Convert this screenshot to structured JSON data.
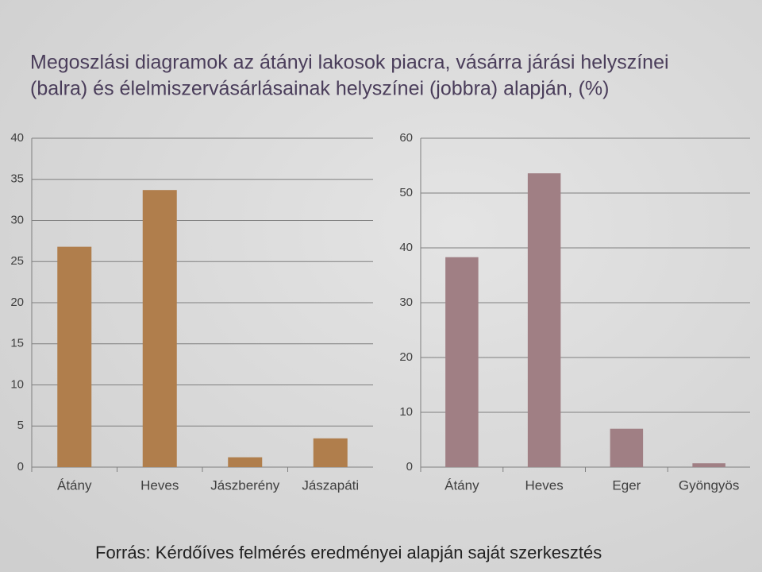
{
  "title": [
    "Megoszlási diagramok az átányi lakosok piacra, vásárra járási helyszínei",
    "(balra) és élelmiszervásárlásainak helyszínei (jobbra) alapján, (%)"
  ],
  "chart_data": [
    {
      "type": "bar",
      "categories": [
        "Átány",
        "Heves",
        "Jászberény",
        "Jászapáti"
      ],
      "values": [
        26.8,
        33.7,
        1.2,
        3.5
      ],
      "color": "#b07e4c",
      "ylim": [
        0,
        40
      ],
      "yticks": [
        0,
        5,
        10,
        15,
        20,
        25,
        30,
        35,
        40
      ],
      "grid": true
    },
    {
      "type": "bar",
      "categories": [
        "Átány",
        "Heves",
        "Eger",
        "Gyöngyös"
      ],
      "values": [
        38.3,
        53.6,
        7.0,
        0.7
      ],
      "color": "#a07f84",
      "ylim": [
        0,
        60
      ],
      "yticks": [
        0,
        10,
        20,
        30,
        40,
        50,
        60
      ],
      "grid": true
    }
  ],
  "source": "Forrás: Kérdőíves felmérés eredményei alapján saját szerkesztés"
}
